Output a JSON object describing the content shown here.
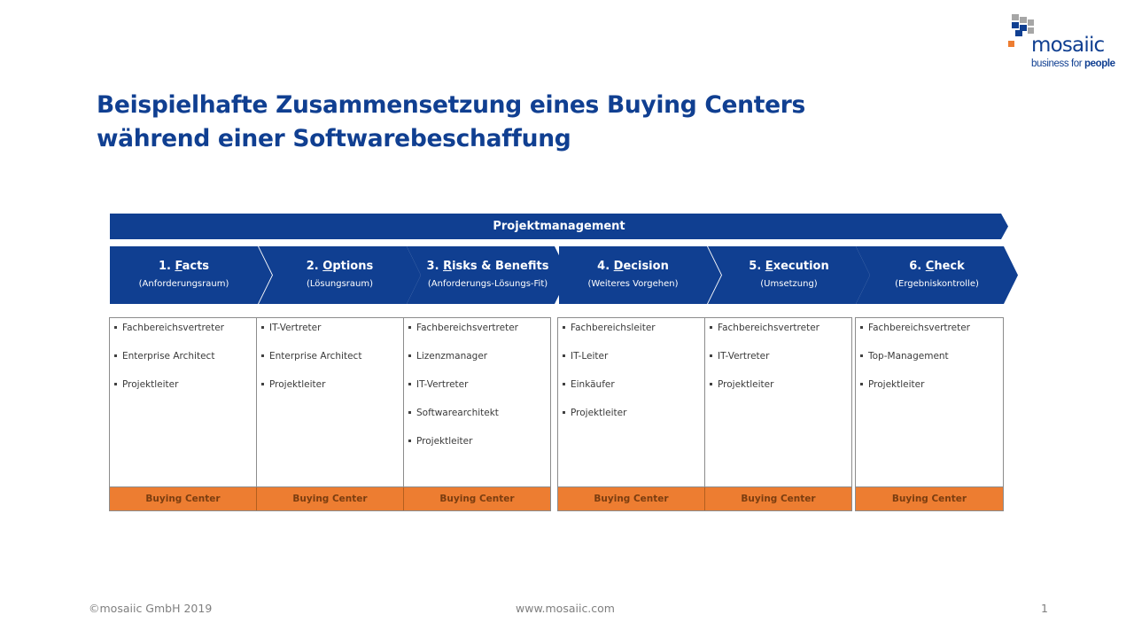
{
  "colors": {
    "primary": "#103f91",
    "accent": "#ed7d31",
    "logo_gray": "#a6a6a6",
    "text": "#3a3a3a",
    "footer": "#7f7f7f"
  },
  "title": {
    "line1": "Beispielhafte Zusammensetzung eines Buying Centers",
    "line2": "während einer Softwarebeschaffung"
  },
  "logo": {
    "word": "mosaiic",
    "tagline_regular": "business for ",
    "tagline_bold": "people"
  },
  "project_bar": {
    "label": "Projektmanagement"
  },
  "phases": [
    {
      "num": "1. ",
      "key": "F",
      "rest": "acts",
      "sub": "(Anforderungsraum)"
    },
    {
      "num": "2. ",
      "key": "O",
      "rest": "ptions",
      "sub": "(Lösungsraum)"
    },
    {
      "num": "3. ",
      "key": "R",
      "rest": "isks & Benefits",
      "sub": "(Anforderungs-Lösungs-Fit)"
    },
    {
      "num": "4. ",
      "key": "D",
      "rest": "ecision",
      "sub": "(Weiteres Vorgehen)"
    },
    {
      "num": "5. ",
      "key": "E",
      "rest": "xecution",
      "sub": "(Umsetzung)"
    },
    {
      "num": "6. ",
      "key": "C",
      "rest": "heck",
      "sub": "(Ergebniskontrolle)"
    }
  ],
  "roles": [
    [
      "Fachbereichsvertreter",
      "Enterprise Architect",
      "Projektleiter"
    ],
    [
      "IT-Vertreter",
      "Enterprise Architect",
      "Projektleiter"
    ],
    [
      "Fachbereichsvertreter",
      "Lizenzmanager",
      "IT-Vertreter",
      "Softwarearchitekt",
      "Projektleiter"
    ],
    [
      "Fachbereichsleiter",
      "IT-Leiter",
      "Einkäufer",
      "Projektleiter"
    ],
    [
      "Fachbereichsvertreter",
      "IT-Vertreter",
      "Projektleiter"
    ],
    [
      "Fachbereichsvertreter",
      "Top-Management",
      "Projektleiter"
    ]
  ],
  "buying_center_label": "Buying Center",
  "footer": {
    "copyright": "©mosaiic GmbH 2019",
    "url": "www.mosaiic.com",
    "page": "1"
  }
}
